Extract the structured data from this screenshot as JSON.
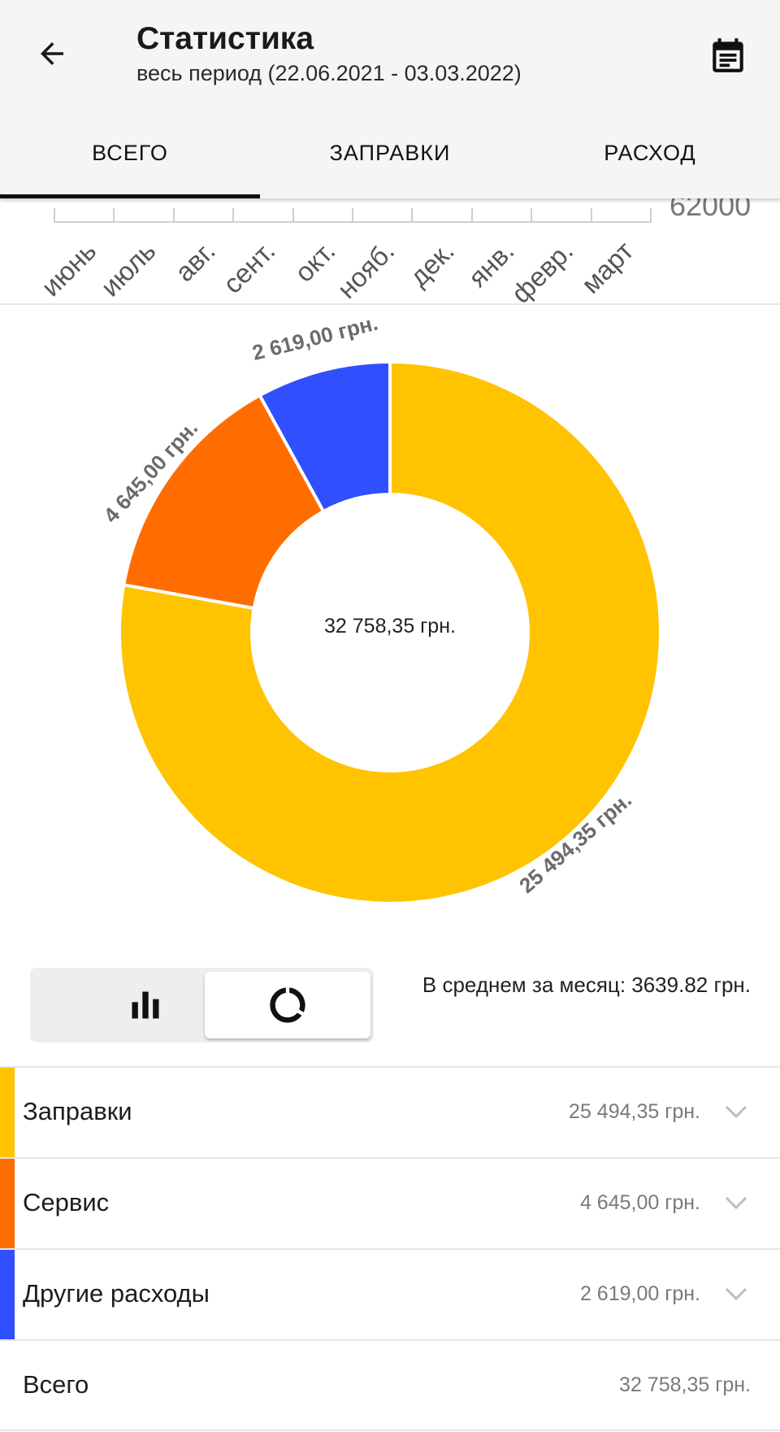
{
  "header": {
    "title": "Статистика",
    "subtitle": "весь период (22.06.2021 - 03.03.2022)",
    "back_icon": "arrow-left-icon",
    "calendar_icon": "calendar-icon"
  },
  "tabs": [
    {
      "label": "ВСЕГО",
      "active": true
    },
    {
      "label": "ЗАПРАВКИ",
      "active": false
    },
    {
      "label": "РАСХОД",
      "active": false
    }
  ],
  "axis": {
    "months": [
      "июнь",
      "июль",
      "авг.",
      "сент.",
      "окт.",
      "нояб.",
      "дек.",
      "янв.",
      "февр.",
      "март"
    ],
    "value_label": "62000"
  },
  "chart_data": {
    "type": "pie",
    "style": "donut",
    "total_label": "32 758,35 грн.",
    "slices": [
      {
        "label": "25 494,35 грн.",
        "value": 25494.35,
        "color": "#ffc300"
      },
      {
        "label": "4 645,00 грн.",
        "value": 4645.0,
        "color": "#ff6d00"
      },
      {
        "label": "2 619,00 грн.",
        "value": 2619.0,
        "color": "#304ffe"
      }
    ]
  },
  "view_toggle": {
    "options": [
      "bar-chart-icon",
      "donut-chart-icon"
    ],
    "selected": "donut-chart-icon"
  },
  "average": {
    "text": "В среднем за месяц: 3639.82 грн."
  },
  "categories": [
    {
      "name": "Заправки",
      "amount": "25 494,35 грн.",
      "color": "#ffc300"
    },
    {
      "name": "Сервис",
      "amount": "4 645,00 грн.",
      "color": "#ff6d00"
    },
    {
      "name": "Другие расходы",
      "amount": "2 619,00 грн.",
      "color": "#304ffe"
    }
  ],
  "total": {
    "name": "Всего",
    "amount": "32 758,35 грн."
  }
}
